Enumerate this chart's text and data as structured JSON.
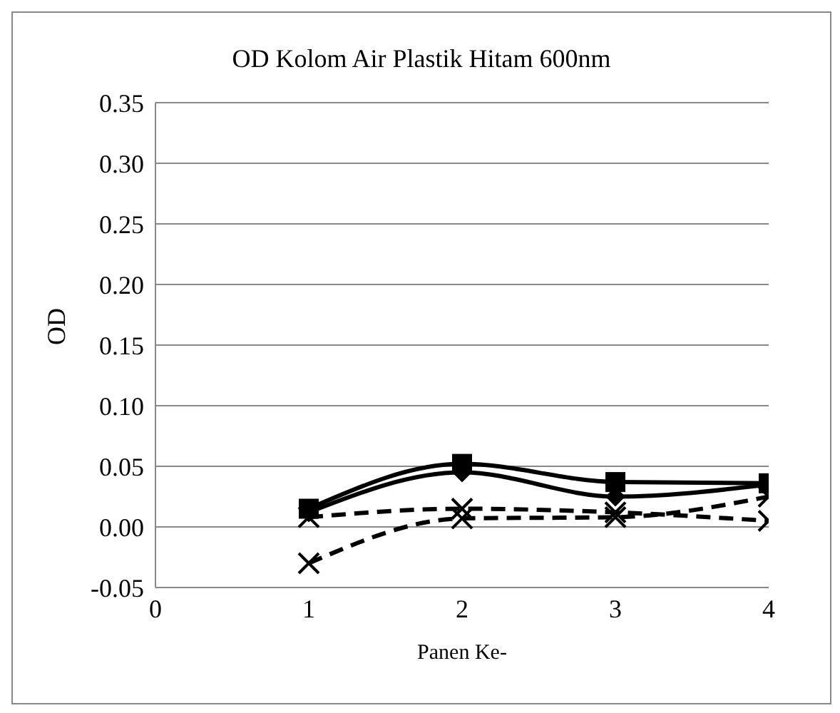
{
  "chart_data": {
    "type": "line",
    "title": "OD Kolom Air Plastik Hitam 600nm",
    "xlabel": "Panen Ke-",
    "ylabel": "OD",
    "x": [
      1,
      2,
      3,
      4
    ],
    "series": [
      {
        "color": "#000000",
        "values": [
          0.015,
          0.052,
          0.037,
          0.036
        ],
        "marker": "square",
        "line_style": "solid"
      },
      {
        "color": "#000000",
        "values": [
          0.012,
          0.045,
          0.025,
          0.035
        ],
        "marker": "diamond",
        "line_style": "solid"
      },
      {
        "color": "#000000",
        "values": [
          0.008,
          0.015,
          0.012,
          0.005
        ],
        "marker": "cross",
        "line_style": "dashed"
      },
      {
        "color": "#000000",
        "values": [
          -0.03,
          0.007,
          0.008,
          0.025
        ],
        "marker": "cross",
        "line_style": "dashed"
      }
    ],
    "xlim": [
      0,
      4
    ],
    "xticks": [
      0,
      1,
      2,
      3,
      4
    ],
    "ylim": [
      -0.05,
      0.35
    ],
    "yticks": [
      -0.05,
      {
        "value": 0,
        "label": "0.00"
      },
      0.05,
      {
        "value": 0.1,
        "label": "0.10"
      },
      0.15,
      {
        "value": 0.2,
        "label": "0.20"
      },
      0.25,
      {
        "value": 0.3,
        "label": "0.30"
      },
      0.35
    ],
    "grid": "y",
    "legend": false
  }
}
